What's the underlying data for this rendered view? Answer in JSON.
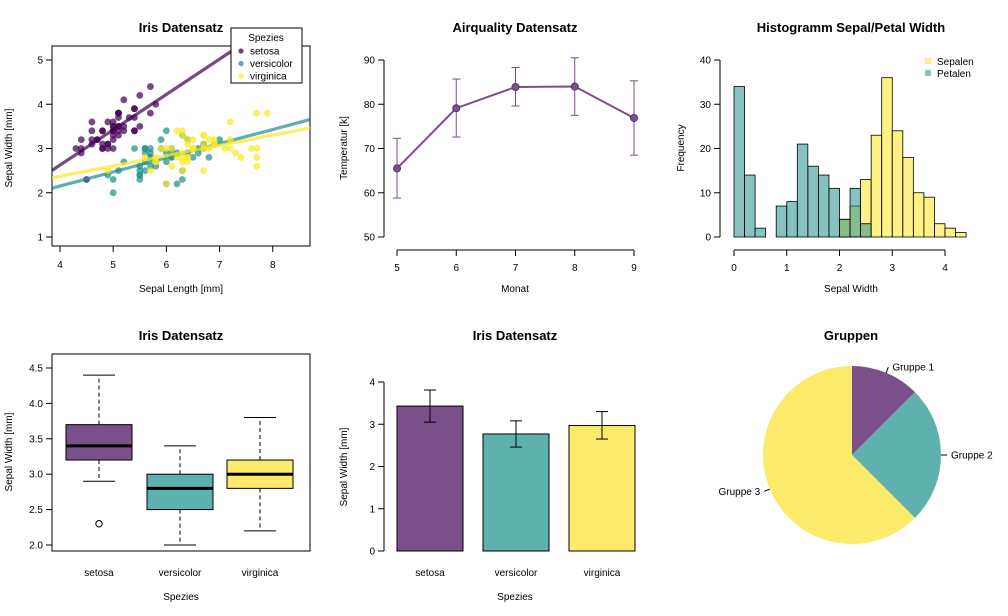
{
  "colors": {
    "purple": "#440154",
    "teal": "#21908C",
    "yellow": "#FDE725",
    "purpleDark": "#7B4F8A",
    "tealMid": "#5FB1AE",
    "yellowMid": "#FCEB6B"
  },
  "chart_data": [
    {
      "type": "scatter",
      "title": "Iris Datensatz",
      "xlabel": "Sepal Length [mm]",
      "ylabel": "Sepal Width [mm]",
      "xlim": [
        3.85,
        8.7
      ],
      "ylim": [
        1,
        5
      ],
      "xticks": [
        4,
        5,
        6,
        7,
        8
      ],
      "yticks": [
        1,
        2,
        3,
        4,
        5
      ],
      "legend": {
        "title": "Spezies",
        "position": "top-right",
        "entries": [
          "setosa",
          "versicolor",
          "virginica"
        ]
      },
      "series": [
        {
          "name": "setosa",
          "color": "purple",
          "points": [
            [
              5.1,
              3.5
            ],
            [
              4.9,
              3.0
            ],
            [
              4.7,
              3.2
            ],
            [
              4.6,
              3.1
            ],
            [
              5.0,
              3.6
            ],
            [
              5.4,
              3.9
            ],
            [
              4.6,
              3.4
            ],
            [
              5.0,
              3.4
            ],
            [
              4.4,
              2.9
            ],
            [
              4.9,
              3.1
            ],
            [
              5.4,
              3.7
            ],
            [
              4.8,
              3.4
            ],
            [
              4.8,
              3.0
            ],
            [
              4.3,
              3.0
            ],
            [
              5.8,
              4.0
            ],
            [
              5.7,
              4.4
            ],
            [
              5.4,
              3.9
            ],
            [
              5.1,
              3.5
            ],
            [
              5.7,
              3.8
            ],
            [
              5.1,
              3.8
            ],
            [
              5.4,
              3.4
            ],
            [
              5.1,
              3.7
            ],
            [
              4.6,
              3.6
            ],
            [
              5.1,
              3.3
            ],
            [
              4.8,
              3.4
            ],
            [
              5.0,
              3.0
            ],
            [
              5.0,
              3.4
            ],
            [
              5.2,
              3.5
            ],
            [
              5.2,
              3.4
            ],
            [
              4.7,
              3.2
            ],
            [
              4.8,
              3.1
            ],
            [
              5.4,
              3.4
            ],
            [
              5.2,
              4.1
            ],
            [
              5.5,
              4.2
            ],
            [
              4.9,
              3.1
            ],
            [
              5.0,
              3.2
            ],
            [
              5.5,
              3.5
            ],
            [
              4.9,
              3.6
            ],
            [
              4.4,
              3.0
            ],
            [
              5.1,
              3.4
            ],
            [
              5.0,
              3.5
            ],
            [
              4.5,
              2.3
            ],
            [
              4.4,
              3.2
            ],
            [
              5.0,
              3.5
            ],
            [
              5.1,
              3.8
            ],
            [
              4.8,
              3.0
            ],
            [
              5.1,
              3.8
            ],
            [
              4.6,
              3.2
            ],
            [
              5.3,
              3.7
            ],
            [
              5.0,
              3.3
            ]
          ],
          "fit": {
            "intercept": -0.5694,
            "slope": 0.7985
          }
        },
        {
          "name": "versicolor",
          "color": "teal",
          "points": [
            [
              7.0,
              3.2
            ],
            [
              6.4,
              3.2
            ],
            [
              6.9,
              3.1
            ],
            [
              5.5,
              2.3
            ],
            [
              6.5,
              2.8
            ],
            [
              5.7,
              2.8
            ],
            [
              6.3,
              3.3
            ],
            [
              4.9,
              2.4
            ],
            [
              6.6,
              2.9
            ],
            [
              5.2,
              2.7
            ],
            [
              5.0,
              2.0
            ],
            [
              5.9,
              3.0
            ],
            [
              6.0,
              2.2
            ],
            [
              6.1,
              2.9
            ],
            [
              5.6,
              2.9
            ],
            [
              6.7,
              3.1
            ],
            [
              5.6,
              3.0
            ],
            [
              5.8,
              2.7
            ],
            [
              6.2,
              2.2
            ],
            [
              5.6,
              2.5
            ],
            [
              5.9,
              3.2
            ],
            [
              6.1,
              2.8
            ],
            [
              6.3,
              2.5
            ],
            [
              6.1,
              2.8
            ],
            [
              6.4,
              2.9
            ],
            [
              6.6,
              3.0
            ],
            [
              6.8,
              2.8
            ],
            [
              6.7,
              3.0
            ],
            [
              6.0,
              2.9
            ],
            [
              5.7,
              2.6
            ],
            [
              5.5,
              2.4
            ],
            [
              5.5,
              2.4
            ],
            [
              5.8,
              2.7
            ],
            [
              6.0,
              2.7
            ],
            [
              5.4,
              3.0
            ],
            [
              6.0,
              3.4
            ],
            [
              6.7,
              3.1
            ],
            [
              6.3,
              2.3
            ],
            [
              5.6,
              3.0
            ],
            [
              5.5,
              2.5
            ],
            [
              5.5,
              2.6
            ],
            [
              6.1,
              3.0
            ],
            [
              5.8,
              2.6
            ],
            [
              5.0,
              2.3
            ],
            [
              5.6,
              2.7
            ],
            [
              5.7,
              3.0
            ],
            [
              5.7,
              2.9
            ],
            [
              6.2,
              2.9
            ],
            [
              5.1,
              2.5
            ],
            [
              5.7,
              2.8
            ]
          ],
          "fit": {
            "intercept": 0.872,
            "slope": 0.3197
          }
        },
        {
          "name": "virginica",
          "color": "yellow",
          "points": [
            [
              6.3,
              3.3
            ],
            [
              5.8,
              2.7
            ],
            [
              7.1,
              3.0
            ],
            [
              6.3,
              2.9
            ],
            [
              6.5,
              3.0
            ],
            [
              7.6,
              3.0
            ],
            [
              4.9,
              2.5
            ],
            [
              7.3,
              2.9
            ],
            [
              6.7,
              2.5
            ],
            [
              7.2,
              3.6
            ],
            [
              6.5,
              3.2
            ],
            [
              6.4,
              2.7
            ],
            [
              6.8,
              3.0
            ],
            [
              5.7,
              2.5
            ],
            [
              5.8,
              2.8
            ],
            [
              6.4,
              3.2
            ],
            [
              6.5,
              3.0
            ],
            [
              7.7,
              3.8
            ],
            [
              7.7,
              2.6
            ],
            [
              6.0,
              2.2
            ],
            [
              6.9,
              3.2
            ],
            [
              5.6,
              2.8
            ],
            [
              7.7,
              2.8
            ],
            [
              6.3,
              2.7
            ],
            [
              6.7,
              3.3
            ],
            [
              7.2,
              3.2
            ],
            [
              6.2,
              2.8
            ],
            [
              6.1,
              3.0
            ],
            [
              6.4,
              2.8
            ],
            [
              7.2,
              3.0
            ],
            [
              7.4,
              2.8
            ],
            [
              7.9,
              3.8
            ],
            [
              6.4,
              2.8
            ],
            [
              6.3,
              2.8
            ],
            [
              6.1,
              2.6
            ],
            [
              7.7,
              3.0
            ],
            [
              6.3,
              3.4
            ],
            [
              6.4,
              3.1
            ],
            [
              6.0,
              3.0
            ],
            [
              6.9,
              3.1
            ],
            [
              6.7,
              3.1
            ],
            [
              6.9,
              3.1
            ],
            [
              5.8,
              2.7
            ],
            [
              6.8,
              3.2
            ],
            [
              6.7,
              3.3
            ],
            [
              6.7,
              3.0
            ],
            [
              6.3,
              2.5
            ],
            [
              6.5,
              3.0
            ],
            [
              6.2,
              3.4
            ],
            [
              5.9,
              3.0
            ]
          ],
          "fit": {
            "intercept": 1.4463,
            "slope": 0.2319
          }
        }
      ]
    },
    {
      "type": "line",
      "title": "Airquality Datensatz",
      "xlabel": "Monat",
      "ylabel": "Temperatur [k]",
      "xlim": [
        4.9,
        9.1
      ],
      "ylim": [
        50,
        90
      ],
      "xticks": [
        5,
        6,
        7,
        8,
        9
      ],
      "yticks": [
        50,
        60,
        70,
        80,
        90
      ],
      "x": [
        5,
        6,
        7,
        8,
        9
      ],
      "y": [
        65.5,
        79.1,
        83.9,
        84.0,
        76.9
      ],
      "err_low": [
        58.8,
        72.6,
        79.6,
        77.5,
        68.5
      ],
      "err_high": [
        72.3,
        85.7,
        88.3,
        90.5,
        85.3
      ]
    },
    {
      "type": "bar",
      "subtype": "histogram",
      "title": "Histogramm Sepal/Petal Width",
      "xlabel": "Sepal Width",
      "ylabel": "Frequency",
      "xlim": [
        -0.1,
        4.5
      ],
      "ylim": [
        0,
        40
      ],
      "xticks": [
        0,
        1,
        2,
        3,
        4
      ],
      "yticks": [
        0,
        10,
        20,
        30,
        40
      ],
      "legend": {
        "position": "top-right",
        "entries": [
          "Sepalen",
          "Petalen"
        ]
      },
      "bin_width": 0.2,
      "series": [
        {
          "name": "Sepalen",
          "color": "yellow",
          "bin_starts": [
            2.0,
            2.2,
            2.4,
            2.6,
            2.8,
            3.0,
            3.2,
            3.4,
            3.6,
            3.8,
            4.0,
            4.2
          ],
          "values": [
            4,
            7,
            13,
            23,
            36,
            24,
            18,
            10,
            9,
            3,
            2,
            1
          ]
        },
        {
          "name": "Petalen",
          "color": "teal",
          "bin_starts": [
            0.0,
            0.2,
            0.4,
            0.6,
            0.8,
            1.0,
            1.2,
            1.4,
            1.6,
            1.8,
            2.0,
            2.2,
            2.4
          ],
          "values": [
            34,
            14,
            2,
            0,
            7,
            8,
            21,
            16,
            14,
            11,
            4,
            11,
            3
          ]
        }
      ]
    },
    {
      "type": "boxplot",
      "title": "Iris Datensatz",
      "xlabel": "Spezies",
      "ylabel": "Sepal Width [mm]",
      "ylim": [
        1.95,
        4.6
      ],
      "yticks": [
        "2.0",
        "2.5",
        "3.0",
        "3.5",
        "4.0",
        "4.5"
      ],
      "categories": [
        "setosa",
        "versicolor",
        "virginica"
      ],
      "boxes": [
        {
          "name": "setosa",
          "color": "purple",
          "min": 2.9,
          "q1": 3.2,
          "median": 3.4,
          "q3": 3.7,
          "max": 4.4,
          "outliers": [
            2.3
          ]
        },
        {
          "name": "versicolor",
          "color": "teal",
          "min": 2.0,
          "q1": 2.5,
          "median": 2.8,
          "q3": 3.0,
          "max": 3.4,
          "outliers": []
        },
        {
          "name": "virginica",
          "color": "yellow",
          "min": 2.2,
          "q1": 2.8,
          "median": 3.0,
          "q3": 3.2,
          "max": 3.8,
          "outliers": []
        }
      ]
    },
    {
      "type": "bar",
      "title": "Iris Datensatz",
      "xlabel": "Spezies",
      "ylabel": "Sepal Width [mm]",
      "ylim": [
        0,
        4
      ],
      "yticks": [
        0,
        1,
        2,
        3,
        4
      ],
      "categories": [
        "setosa",
        "versicolor",
        "virginica"
      ],
      "values": [
        3.43,
        2.77,
        2.97
      ],
      "err_low": [
        3.05,
        2.46,
        2.65
      ],
      "err_high": [
        3.81,
        3.08,
        3.3
      ]
    },
    {
      "type": "pie",
      "title": "Gruppen",
      "labels": [
        "Gruppe 1",
        "Gruppe 2",
        "Gruppe 3"
      ],
      "values": [
        12.5,
        25,
        62.5
      ]
    }
  ]
}
